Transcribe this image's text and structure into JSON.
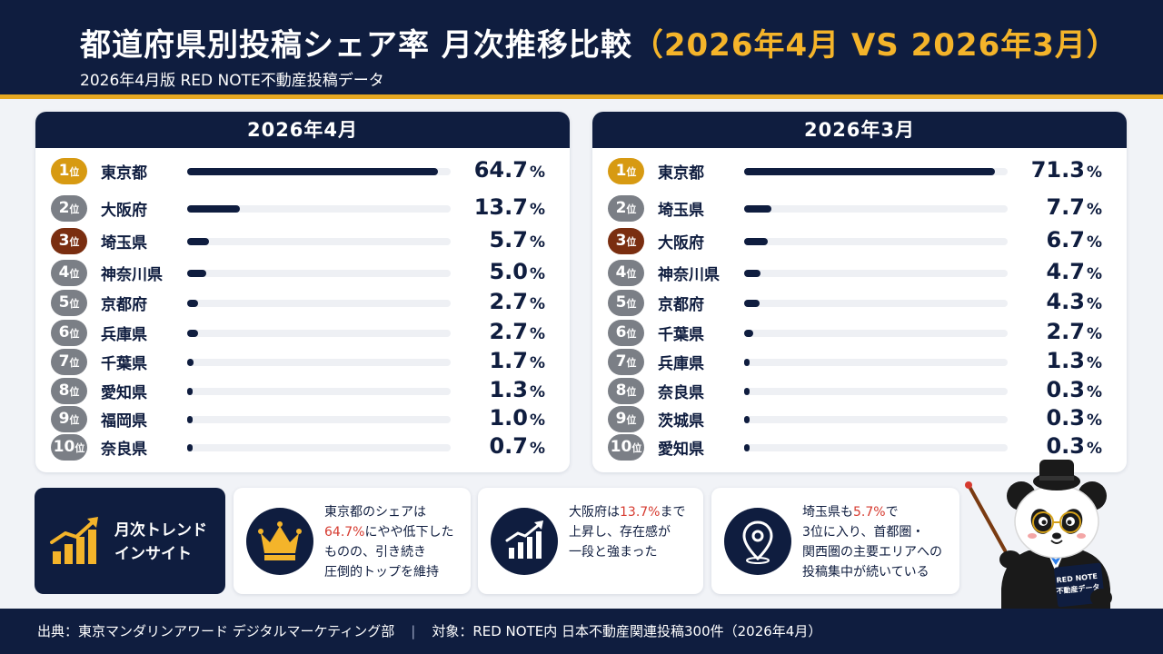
{
  "header": {
    "title_main": "都道府県別投稿シェア率 月次推移比較",
    "title_compare": "（2026年4月 VS 2026年3月）",
    "subtitle": "2026年4月版 RED NOTE不動産投稿データ"
  },
  "colors": {
    "navy": "#0f1d3f",
    "gold": "#d79a12",
    "gray_badge": "#7b7f86",
    "bronze": "#7a2e10",
    "accent_red": "#d63a2f",
    "accent_yellow": "#f4b42a"
  },
  "rank_unit": "位",
  "percent_unit": "%",
  "chart_data": [
    {
      "type": "bar",
      "title": "2026年4月",
      "ranks": [
        "1",
        "2",
        "3",
        "4",
        "5",
        "6",
        "7",
        "8",
        "9",
        "10"
      ],
      "categories": [
        "東京都",
        "大阪府",
        "埼玉県",
        "神奈川県",
        "京都府",
        "兵庫県",
        "千葉県",
        "愛知県",
        "福岡県",
        "奈良県"
      ],
      "values": [
        64.7,
        13.7,
        5.7,
        5.0,
        2.7,
        2.7,
        1.7,
        1.3,
        1.0,
        0.7
      ],
      "value_labels": [
        "64.7",
        "13.7",
        "5.7",
        "5.0",
        "2.7",
        "2.7",
        "1.7",
        "1.3",
        "1.0",
        "0.7"
      ],
      "xlim": [
        0,
        68
      ]
    },
    {
      "type": "bar",
      "title": "2026年3月",
      "ranks": [
        "1",
        "2",
        "3",
        "4",
        "5",
        "6",
        "7",
        "8",
        "9",
        "10"
      ],
      "categories": [
        "東京都",
        "埼玉県",
        "大阪府",
        "神奈川県",
        "京都府",
        "千葉県",
        "兵庫県",
        "奈良県",
        "茨城県",
        "愛知県"
      ],
      "values": [
        71.3,
        7.7,
        6.7,
        4.7,
        4.3,
        2.7,
        1.3,
        0.3,
        0.3,
        0.3
      ],
      "value_labels": [
        "71.3",
        "7.7",
        "6.7",
        "4.7",
        "4.3",
        "2.7",
        "1.3",
        "0.3",
        "0.3",
        "0.3"
      ],
      "xlim": [
        0,
        75
      ]
    }
  ],
  "insight": {
    "label": "月次トレンド\nインサイト",
    "icon": "trend-chart-icon",
    "cards": [
      {
        "icon": "crown-icon",
        "lines": [
          [
            "東京都のシェアは"
          ],
          [
            "64.7%",
            "にやや低下した"
          ],
          [
            "ものの、引き続き"
          ],
          [
            "圧倒的トップを維持"
          ]
        ],
        "highlight": "64.7%"
      },
      {
        "icon": "rising-chart-icon",
        "lines": [
          [
            "大阪府は",
            "13.7%",
            "まで"
          ],
          [
            "上昇し、存在感が"
          ],
          [
            "一段と強まった"
          ]
        ],
        "highlight": "13.7%"
      },
      {
        "icon": "location-pin-icon",
        "lines": [
          [
            "埼玉県も",
            "5.7%",
            "で"
          ],
          [
            "3位に入り、首都圏・"
          ],
          [
            "関西圏の主要エリアへの"
          ],
          [
            "投稿集中が続いている"
          ]
        ],
        "highlight": "5.7%"
      }
    ]
  },
  "mascot": {
    "icon": "panda-mascot-icon",
    "book_label": "RED NOTE\n不動産データ"
  },
  "footer": {
    "source": "出典：東京マンダリンアワード デジタルマーケティング部",
    "separator": "|",
    "target": "対象：RED NOTE内 日本不動産関連投稿300件（2026年4月）"
  }
}
